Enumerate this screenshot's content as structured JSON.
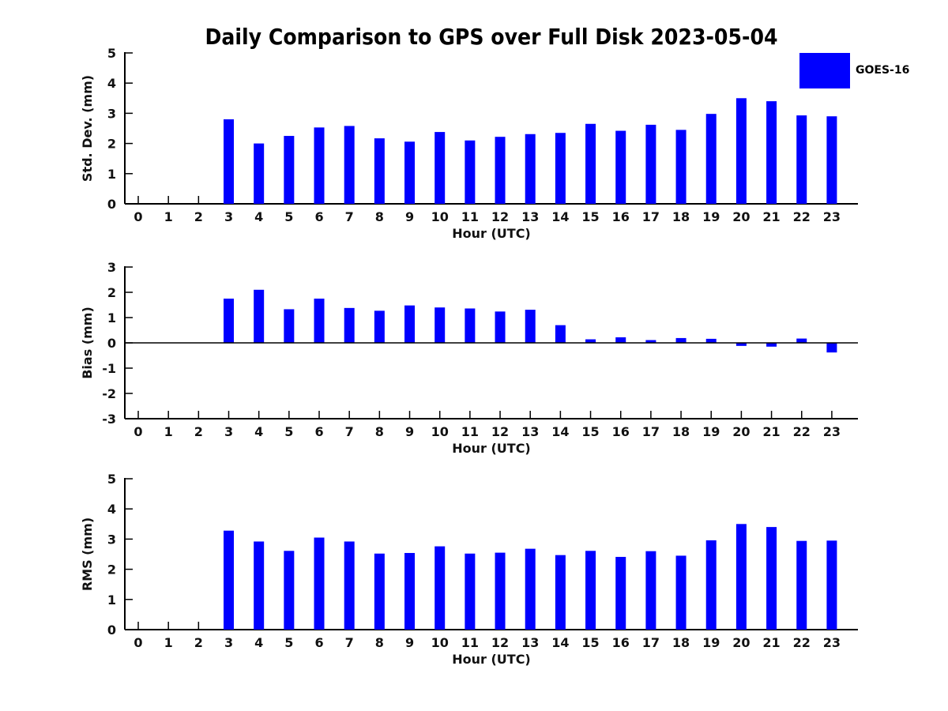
{
  "title": "Daily Comparison to GPS over Full Disk 2023-05-04",
  "legend": {
    "label": "GOES-16",
    "color": "#0000FF",
    "position": "top-right"
  },
  "chart_data": [
    {
      "id": "std",
      "type": "bar",
      "series_name": "GOES-16",
      "ylabel": "Std. Dev. (mm)",
      "xlabel": "Hour (UTC)",
      "ylim": [
        0,
        5
      ],
      "yticks": [
        0,
        1,
        2,
        3,
        4,
        5
      ],
      "grid": false,
      "zero_line": false,
      "bar_color": "#0000FF",
      "categories": [
        0,
        1,
        2,
        3,
        4,
        5,
        6,
        7,
        8,
        9,
        10,
        11,
        12,
        13,
        14,
        15,
        16,
        17,
        18,
        19,
        20,
        21,
        22,
        23
      ],
      "values": [
        null,
        null,
        null,
        2.8,
        2.0,
        2.25,
        2.53,
        2.58,
        2.17,
        2.06,
        2.38,
        2.1,
        2.22,
        2.31,
        2.35,
        2.65,
        2.42,
        2.62,
        2.45,
        2.98,
        3.5,
        3.4,
        2.93,
        2.9
      ]
    },
    {
      "id": "bias",
      "type": "bar",
      "series_name": "GOES-16",
      "ylabel": "Bias (mm)",
      "xlabel": "Hour (UTC)",
      "ylim": [
        -3,
        3
      ],
      "yticks": [
        -3,
        -2,
        -1,
        0,
        1,
        2,
        3
      ],
      "grid": false,
      "zero_line": true,
      "bar_color": "#0000FF",
      "categories": [
        0,
        1,
        2,
        3,
        4,
        5,
        6,
        7,
        8,
        9,
        10,
        11,
        12,
        13,
        14,
        15,
        16,
        17,
        18,
        19,
        20,
        21,
        22,
        23
      ],
      "values": [
        null,
        null,
        null,
        1.75,
        2.1,
        1.33,
        1.75,
        1.38,
        1.27,
        1.48,
        1.4,
        1.36,
        1.24,
        1.31,
        0.7,
        0.14,
        0.22,
        0.11,
        0.19,
        0.16,
        -0.12,
        -0.15,
        0.17,
        -0.38
      ]
    },
    {
      "id": "rms",
      "type": "bar",
      "series_name": "GOES-16",
      "ylabel": "RMS (mm)",
      "xlabel": "Hour (UTC)",
      "ylim": [
        0,
        5
      ],
      "yticks": [
        0,
        1,
        2,
        3,
        4,
        5
      ],
      "grid": false,
      "zero_line": false,
      "bar_color": "#0000FF",
      "categories": [
        0,
        1,
        2,
        3,
        4,
        5,
        6,
        7,
        8,
        9,
        10,
        11,
        12,
        13,
        14,
        15,
        16,
        17,
        18,
        19,
        20,
        21,
        22,
        23
      ],
      "values": [
        null,
        null,
        null,
        3.28,
        2.92,
        2.61,
        3.05,
        2.92,
        2.52,
        2.54,
        2.76,
        2.52,
        2.55,
        2.68,
        2.47,
        2.61,
        2.41,
        2.6,
        2.45,
        2.96,
        3.5,
        3.4,
        2.94,
        2.95
      ]
    }
  ]
}
